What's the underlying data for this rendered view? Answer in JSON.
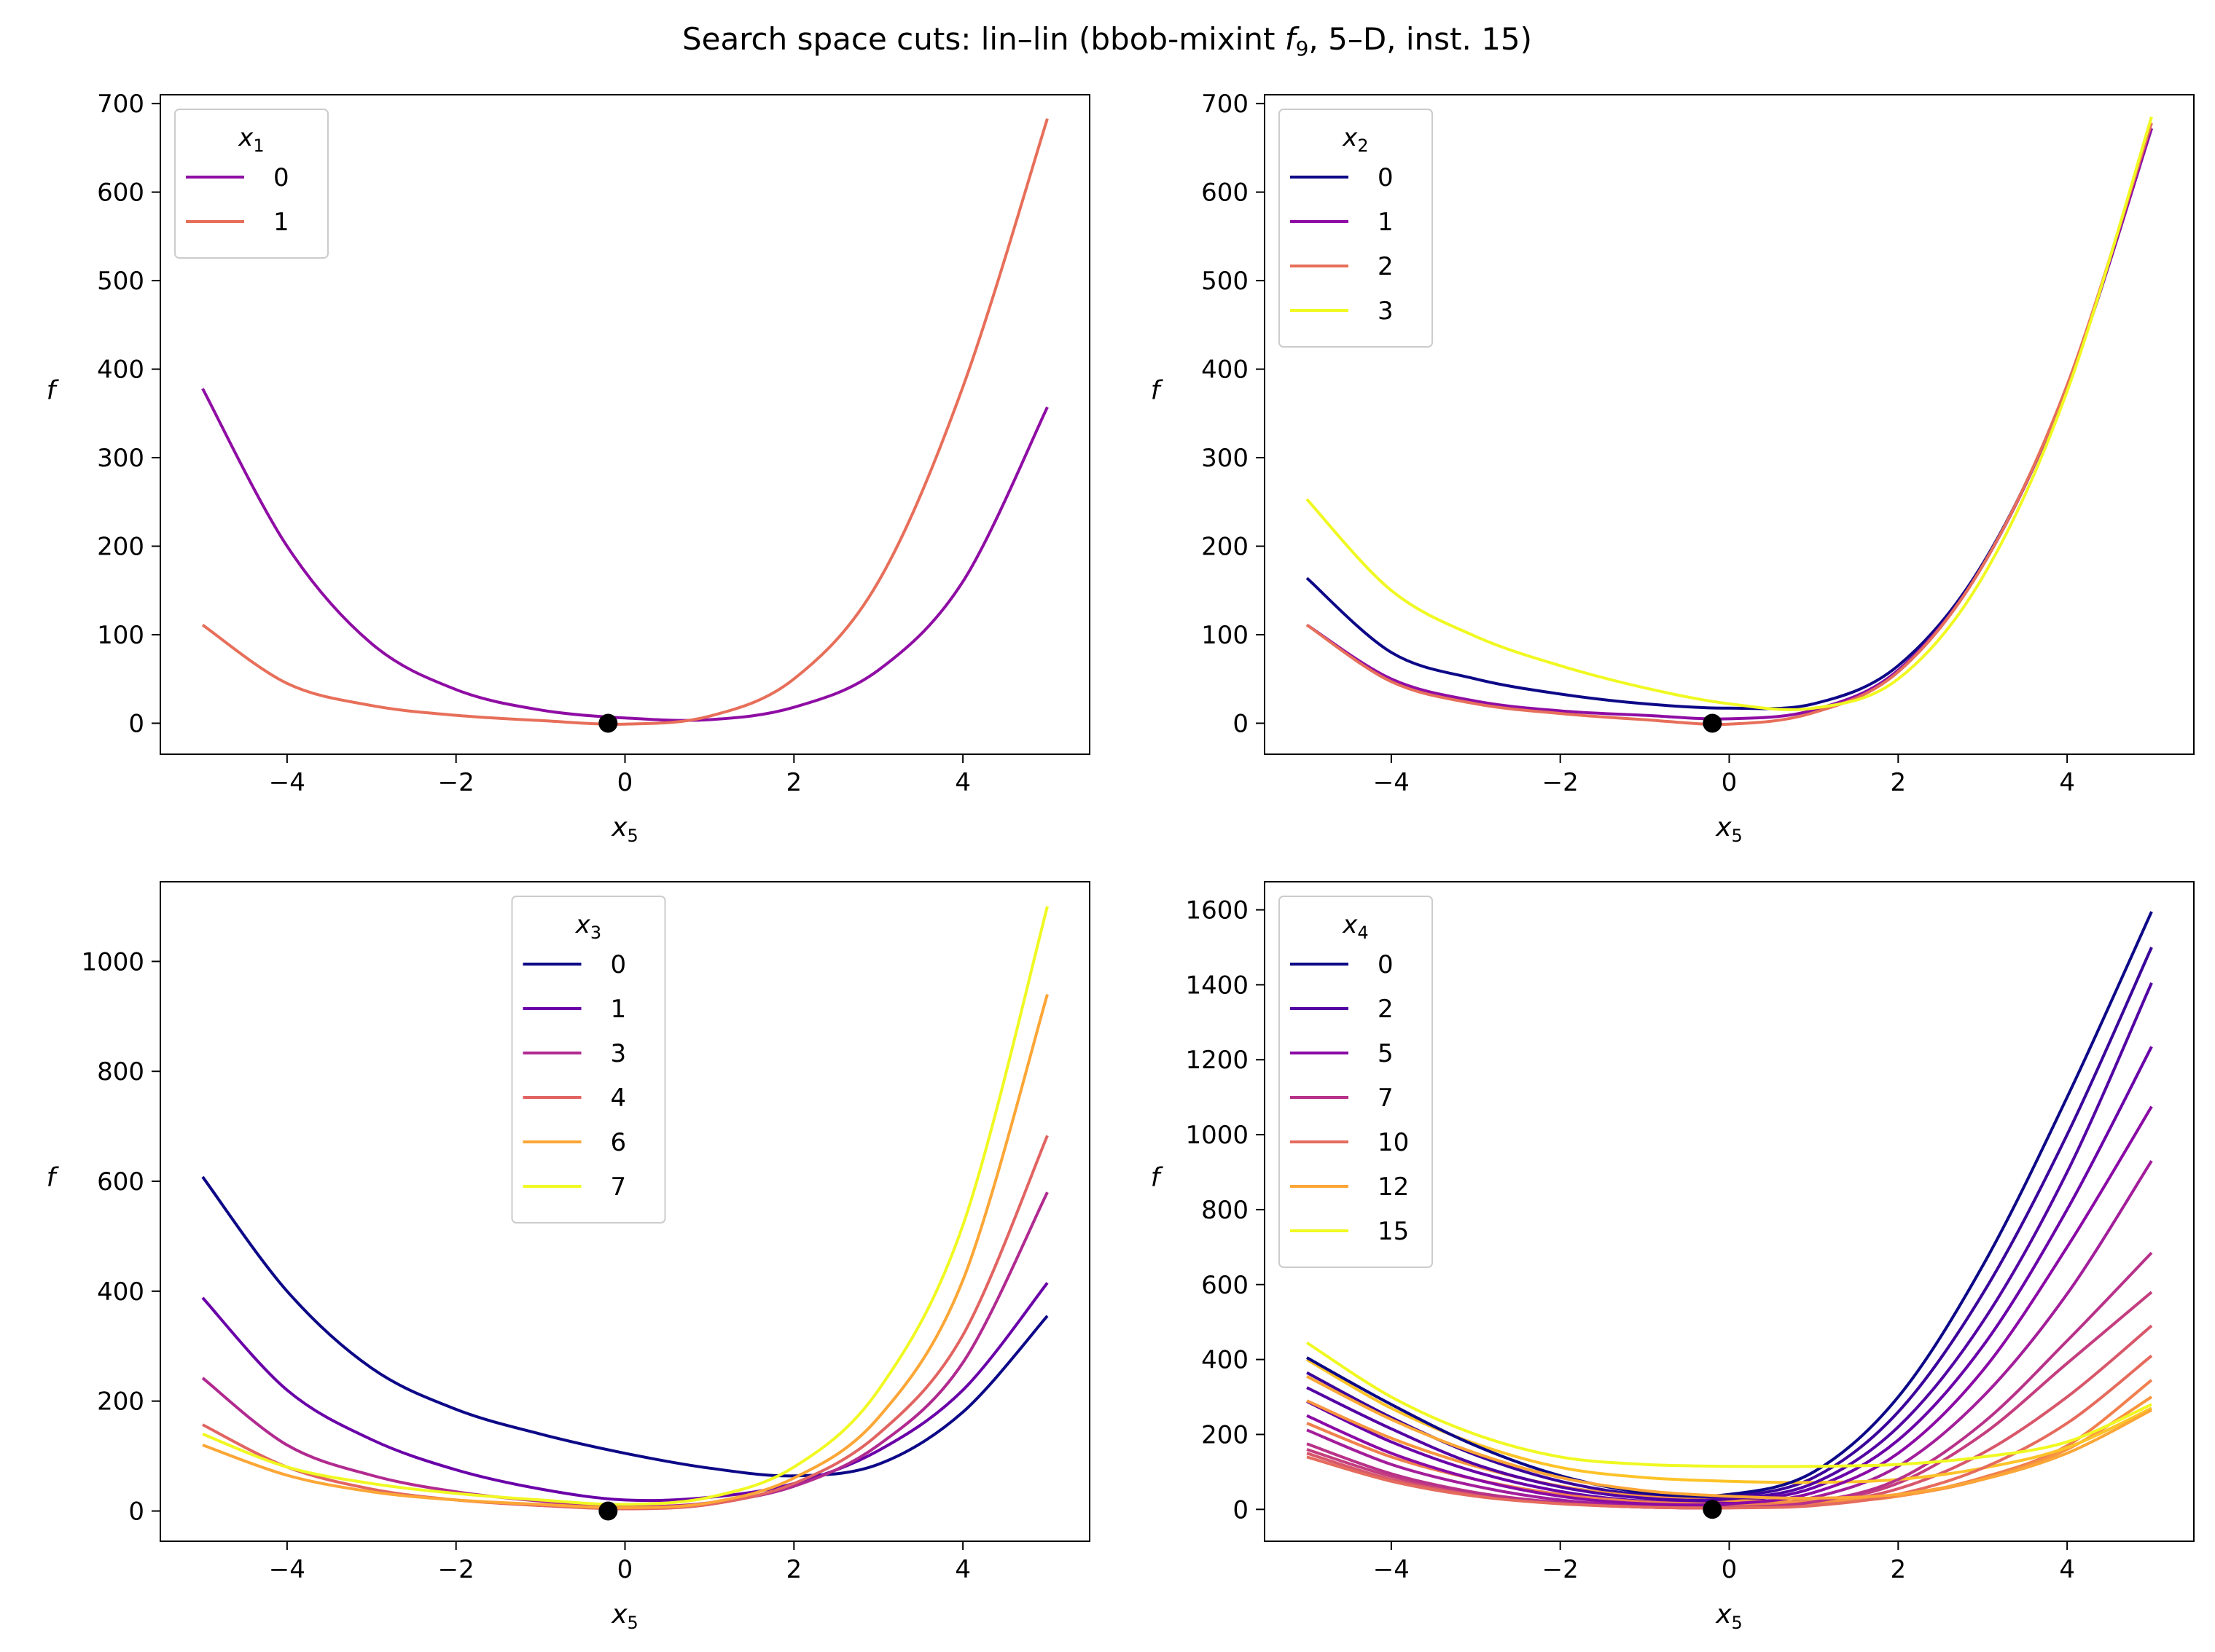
{
  "title": {
    "text_before": "Search space cuts: lin–lin (bbob-mixint ",
    "func_letter": "f",
    "func_sub": "9",
    "text_after": ", 5–D, inst. 15)"
  },
  "chart_data": [
    {
      "type": "line",
      "xlabel": "x",
      "xlabel_sub": "5",
      "ylabel": "f",
      "xlim": [
        -5.5,
        5.5
      ],
      "ylim": [
        -35,
        710
      ],
      "xticks": [
        -4,
        -2,
        0,
        2,
        4
      ],
      "yticks": [
        0,
        100,
        200,
        300,
        400,
        500,
        600,
        700
      ],
      "legend": {
        "title": "x",
        "title_sub": "1",
        "placement": "upper-left"
      },
      "optimum": {
        "x": -0.2,
        "y": 0
      },
      "series": [
        {
          "name": "0",
          "color": "#8f0da4",
          "x": [
            -5,
            -4,
            -3,
            -2,
            -1,
            0,
            1,
            2,
            3,
            4,
            5
          ],
          "y": [
            378,
            200,
            90,
            38,
            15,
            6,
            4,
            18,
            60,
            160,
            357
          ]
        },
        {
          "name": "1",
          "color": "#e76f5a",
          "x": [
            -5,
            -4,
            -3,
            -2,
            -1,
            0,
            1,
            2,
            3,
            4,
            5
          ],
          "y": [
            111,
            45,
            20,
            9,
            3,
            -1,
            8,
            50,
            160,
            380,
            683
          ]
        }
      ]
    },
    {
      "type": "line",
      "xlabel": "x",
      "xlabel_sub": "5",
      "ylabel": "f",
      "xlim": [
        -5.5,
        5.5
      ],
      "ylim": [
        -35,
        710
      ],
      "xticks": [
        -4,
        -2,
        0,
        2,
        4
      ],
      "yticks": [
        0,
        100,
        200,
        300,
        400,
        500,
        600,
        700
      ],
      "legend": {
        "title": "x",
        "title_sub": "2",
        "placement": "upper-left"
      },
      "optimum": {
        "x": -0.2,
        "y": 0
      },
      "series": [
        {
          "name": "0",
          "color": "#0d0887",
          "x": [
            -5,
            -4,
            -3,
            -2,
            -1,
            0,
            1,
            2,
            3,
            4,
            5
          ],
          "y": [
            164,
            80,
            50,
            33,
            22,
            17,
            22,
            65,
            180,
            380,
            672
          ]
        },
        {
          "name": "1",
          "color": "#8f0da4",
          "x": [
            -5,
            -4,
            -3,
            -2,
            -1,
            0,
            1,
            2,
            3,
            4,
            5
          ],
          "y": [
            111,
            50,
            25,
            14,
            9,
            5,
            15,
            60,
            178,
            380,
            672
          ]
        },
        {
          "name": "2",
          "color": "#e76f5a",
          "x": [
            -5,
            -4,
            -3,
            -2,
            -1,
            0,
            1,
            2,
            3,
            4,
            5
          ],
          "y": [
            111,
            47,
            22,
            11,
            4,
            -1,
            12,
            58,
            178,
            382,
            678
          ]
        },
        {
          "name": "3",
          "color": "#f0f921",
          "x": [
            -5,
            -4,
            -3,
            -2,
            -1,
            0,
            1,
            2,
            3,
            4,
            5
          ],
          "y": [
            253,
            150,
            98,
            65,
            40,
            22,
            17,
            50,
            165,
            375,
            685
          ]
        }
      ]
    },
    {
      "type": "line",
      "xlabel": "x",
      "xlabel_sub": "5",
      "ylabel": "f",
      "xlim": [
        -5.5,
        5.5
      ],
      "ylim": [
        -55,
        1145
      ],
      "xticks": [
        -4,
        -2,
        0,
        2,
        4
      ],
      "yticks": [
        0,
        200,
        400,
        600,
        800,
        1000
      ],
      "legend": {
        "title": "x",
        "title_sub": "3",
        "placement": "upper-center"
      },
      "optimum": {
        "x": -0.2,
        "y": 0
      },
      "series": [
        {
          "name": "0",
          "color": "#0d0887",
          "x": [
            -5,
            -4,
            -3,
            -2,
            -1,
            0,
            1,
            2,
            3,
            4,
            5
          ],
          "y": [
            608,
            400,
            260,
            185,
            140,
            105,
            78,
            64,
            85,
            180,
            355
          ]
        },
        {
          "name": "1",
          "color": "#6a00a8",
          "x": [
            -5,
            -4,
            -3,
            -2,
            -1,
            0,
            1,
            2,
            3,
            4,
            5
          ],
          "y": [
            388,
            220,
            130,
            75,
            40,
            20,
            25,
            50,
            110,
            220,
            415
          ]
        },
        {
          "name": "3",
          "color": "#b12a90",
          "x": [
            -5,
            -4,
            -3,
            -2,
            -1,
            0,
            1,
            2,
            3,
            4,
            5
          ],
          "y": [
            242,
            120,
            65,
            35,
            18,
            8,
            15,
            45,
            120,
            270,
            580
          ]
        },
        {
          "name": "4",
          "color": "#e16462",
          "x": [
            -5,
            -4,
            -3,
            -2,
            -1,
            0,
            1,
            2,
            3,
            4,
            5
          ],
          "y": [
            157,
            80,
            40,
            20,
            10,
            4,
            12,
            50,
            140,
            320,
            683
          ]
        },
        {
          "name": "6",
          "color": "#fca636",
          "x": [
            -5,
            -4,
            -3,
            -2,
            -1,
            0,
            1,
            2,
            3,
            4,
            5
          ],
          "y": [
            120,
            65,
            35,
            20,
            12,
            6,
            15,
            60,
            170,
            420,
            940
          ]
        },
        {
          "name": "7",
          "color": "#f0f921",
          "x": [
            -5,
            -4,
            -3,
            -2,
            -1,
            0,
            1,
            2,
            3,
            4,
            5
          ],
          "y": [
            140,
            80,
            50,
            32,
            20,
            12,
            25,
            80,
            220,
            520,
            1100
          ]
        }
      ]
    },
    {
      "type": "line",
      "xlabel": "x",
      "xlabel_sub": "5",
      "ylabel": "f",
      "xlim": [
        -5.5,
        5.5
      ],
      "ylim": [
        -85,
        1675
      ],
      "xticks": [
        -4,
        -2,
        0,
        2,
        4
      ],
      "yticks": [
        0,
        200,
        400,
        600,
        800,
        1000,
        1200,
        1400,
        1600
      ],
      "legend": {
        "title": "x",
        "title_sub": "4",
        "placement": "upper-left"
      },
      "optimum": {
        "x": -0.2,
        "y": 0
      },
      "series": [
        {
          "name": "0",
          "color": "#0d0887",
          "x": [
            -5,
            -4,
            -3,
            -2,
            -1,
            0,
            1,
            2,
            3,
            4,
            5
          ],
          "y": [
            405,
            280,
            170,
            90,
            45,
            40,
            100,
            300,
            650,
            1100,
            1595
          ]
        },
        {
          "name": "2",
          "color": "#5302a3",
          "x": [
            -5,
            -4,
            -3,
            -2,
            -1,
            0,
            1,
            2,
            3,
            4,
            5
          ],
          "y": [
            325,
            215,
            120,
            60,
            30,
            28,
            70,
            220,
            500,
            900,
            1405
          ]
        },
        {
          "name": "5",
          "color": "#8b0aa5",
          "x": [
            -5,
            -4,
            -3,
            -2,
            -1,
            0,
            1,
            2,
            3,
            4,
            5
          ],
          "y": [
            250,
            150,
            80,
            35,
            15,
            15,
            45,
            150,
            370,
            700,
            1075
          ]
        },
        {
          "name": "7",
          "color": "#b83289",
          "x": [
            -5,
            -4,
            -3,
            -2,
            -1,
            0,
            1,
            2,
            3,
            4,
            5
          ],
          "y": [
            175,
            95,
            45,
            18,
            6,
            5,
            20,
            80,
            230,
            450,
            685
          ]
        },
        {
          "name": "10",
          "color": "#e56b5d",
          "x": [
            -5,
            -4,
            -3,
            -2,
            -1,
            0,
            1,
            2,
            3,
            4,
            5
          ],
          "y": [
            140,
            75,
            35,
            15,
            6,
            4,
            10,
            40,
            110,
            230,
            410
          ]
        },
        {
          "name": "12",
          "color": "#fca636",
          "x": [
            -5,
            -4,
            -3,
            -2,
            -1,
            0,
            1,
            2,
            3,
            4,
            5
          ],
          "y": [
            355,
            240,
            150,
            85,
            50,
            35,
            30,
            40,
            80,
            150,
            265
          ]
        },
        {
          "name": "15",
          "color": "#f0f921",
          "x": [
            -5,
            -4,
            -3,
            -2,
            -1,
            0,
            1,
            2,
            3,
            4,
            5
          ],
          "y": [
            445,
            300,
            200,
            140,
            120,
            115,
            115,
            120,
            140,
            180,
            280
          ]
        }
      ],
      "extra_series": [
        {
          "color": "#3b049a",
          "x": [
            -5,
            -4,
            -3,
            -2,
            -1,
            0,
            1,
            2,
            3,
            4,
            5
          ],
          "y": [
            365,
            245,
            145,
            75,
            38,
            34,
            85,
            260,
            575,
            1000,
            1500
          ]
        },
        {
          "color": "#6a00a8",
          "x": [
            -5,
            -4,
            -3,
            -2,
            -1,
            0,
            1,
            2,
            3,
            4,
            5
          ],
          "y": [
            288,
            180,
            100,
            48,
            22,
            22,
            58,
            185,
            435,
            800,
            1235
          ]
        },
        {
          "color": "#a31e9a",
          "x": [
            -5,
            -4,
            -3,
            -2,
            -1,
            0,
            1,
            2,
            3,
            4,
            5
          ],
          "y": [
            212,
            120,
            62,
            25,
            10,
            10,
            32,
            115,
            300,
            575,
            930
          ]
        },
        {
          "color": "#c43e7f",
          "x": [
            -5,
            -4,
            -3,
            -2,
            -1,
            0,
            1,
            2,
            3,
            4,
            5
          ],
          "y": [
            160,
            88,
            42,
            17,
            6,
            5,
            18,
            70,
            200,
            390,
            580
          ]
        },
        {
          "color": "#d8576b",
          "x": [
            -5,
            -4,
            -3,
            -2,
            -1,
            0,
            1,
            2,
            3,
            4,
            5
          ],
          "y": [
            150,
            80,
            38,
            16,
            6,
            4,
            14,
            55,
            150,
            300,
            490
          ]
        },
        {
          "color": "#f0804e",
          "x": [
            -5,
            -4,
            -3,
            -2,
            -1,
            0,
            1,
            2,
            3,
            4,
            5
          ],
          "y": [
            230,
            140,
            80,
            40,
            20,
            14,
            16,
            35,
            85,
            170,
            345
          ]
        },
        {
          "color": "#f89540",
          "x": [
            -5,
            -4,
            -3,
            -2,
            -1,
            0,
            1,
            2,
            3,
            4,
            5
          ],
          "y": [
            290,
            190,
            115,
            62,
            34,
            24,
            22,
            36,
            80,
            160,
            300
          ]
        },
        {
          "color": "#fdc328",
          "x": [
            -5,
            -4,
            -3,
            -2,
            -1,
            0,
            1,
            2,
            3,
            4,
            5
          ],
          "y": [
            400,
            270,
            175,
            112,
            85,
            75,
            72,
            80,
            110,
            165,
            270
          ]
        }
      ]
    }
  ]
}
